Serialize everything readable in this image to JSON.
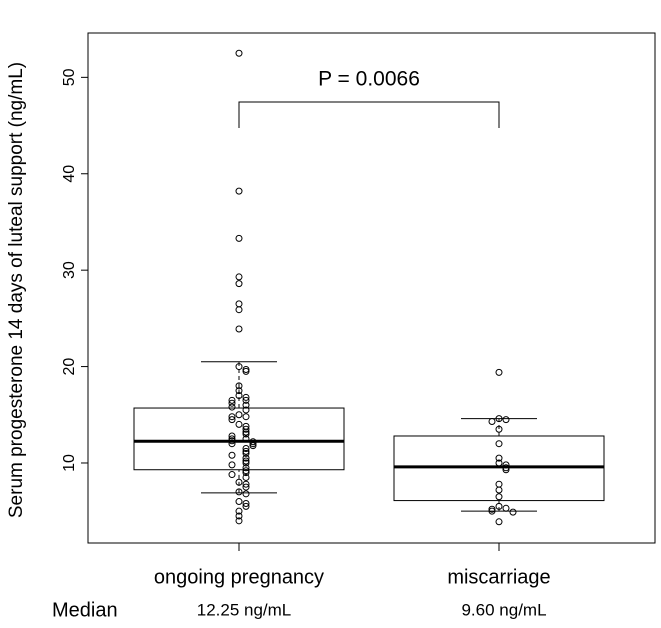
{
  "chart_data": {
    "type": "box",
    "y_label": "Serum progesterone 14 days of luteal support (ng/mL)",
    "categories": [
      "ongoing pregnancy",
      "miscarriage"
    ],
    "boxes": [
      {
        "whisker_low": 6.9,
        "q1": 9.3,
        "median": 12.25,
        "q3": 15.7,
        "whisker_high": 20.5
      },
      {
        "whisker_low": 5.0,
        "q1": 6.1,
        "median": 9.6,
        "q3": 12.8,
        "whisker_high": 14.6
      }
    ],
    "points": [
      [
        52.5,
        38.2,
        33.3,
        29.3,
        28.6,
        26.5,
        25.9,
        23.9,
        20.0,
        19.7,
        19.5,
        18.0,
        17.5,
        17.0,
        16.8,
        16.5,
        16.5,
        16.2,
        16.0,
        15.8,
        15.5,
        15.0,
        14.8,
        14.8,
        14.5,
        14.0,
        13.8,
        13.5,
        13.2,
        13.0,
        12.8,
        12.5,
        12.5,
        12.3,
        12.2,
        12.0,
        12.0,
        11.8,
        11.5,
        11.2,
        11.0,
        10.8,
        10.5,
        10.2,
        10.0,
        9.8,
        9.5,
        9.2,
        9.0,
        8.8,
        8.5,
        8.0,
        7.8,
        7.5,
        7.0,
        6.8,
        6.0,
        5.8,
        5.5,
        5.0,
        4.5,
        4.0
      ],
      [
        19.4,
        14.6,
        14.5,
        14.3,
        13.5,
        12.0,
        10.5,
        10.0,
        9.8,
        9.5,
        9.3,
        7.8,
        7.2,
        6.5,
        5.5,
        5.3,
        5.2,
        5.0,
        4.9,
        3.9
      ]
    ],
    "ylim": [
      1.7,
      54.6
    ],
    "yticks": [
      10,
      20,
      30,
      40,
      50
    ],
    "annotation": "P = 0.0066",
    "median_row": {
      "title": "Median",
      "labels": [
        "12.25 ng/mL",
        "9.60 ng/mL"
      ]
    }
  }
}
